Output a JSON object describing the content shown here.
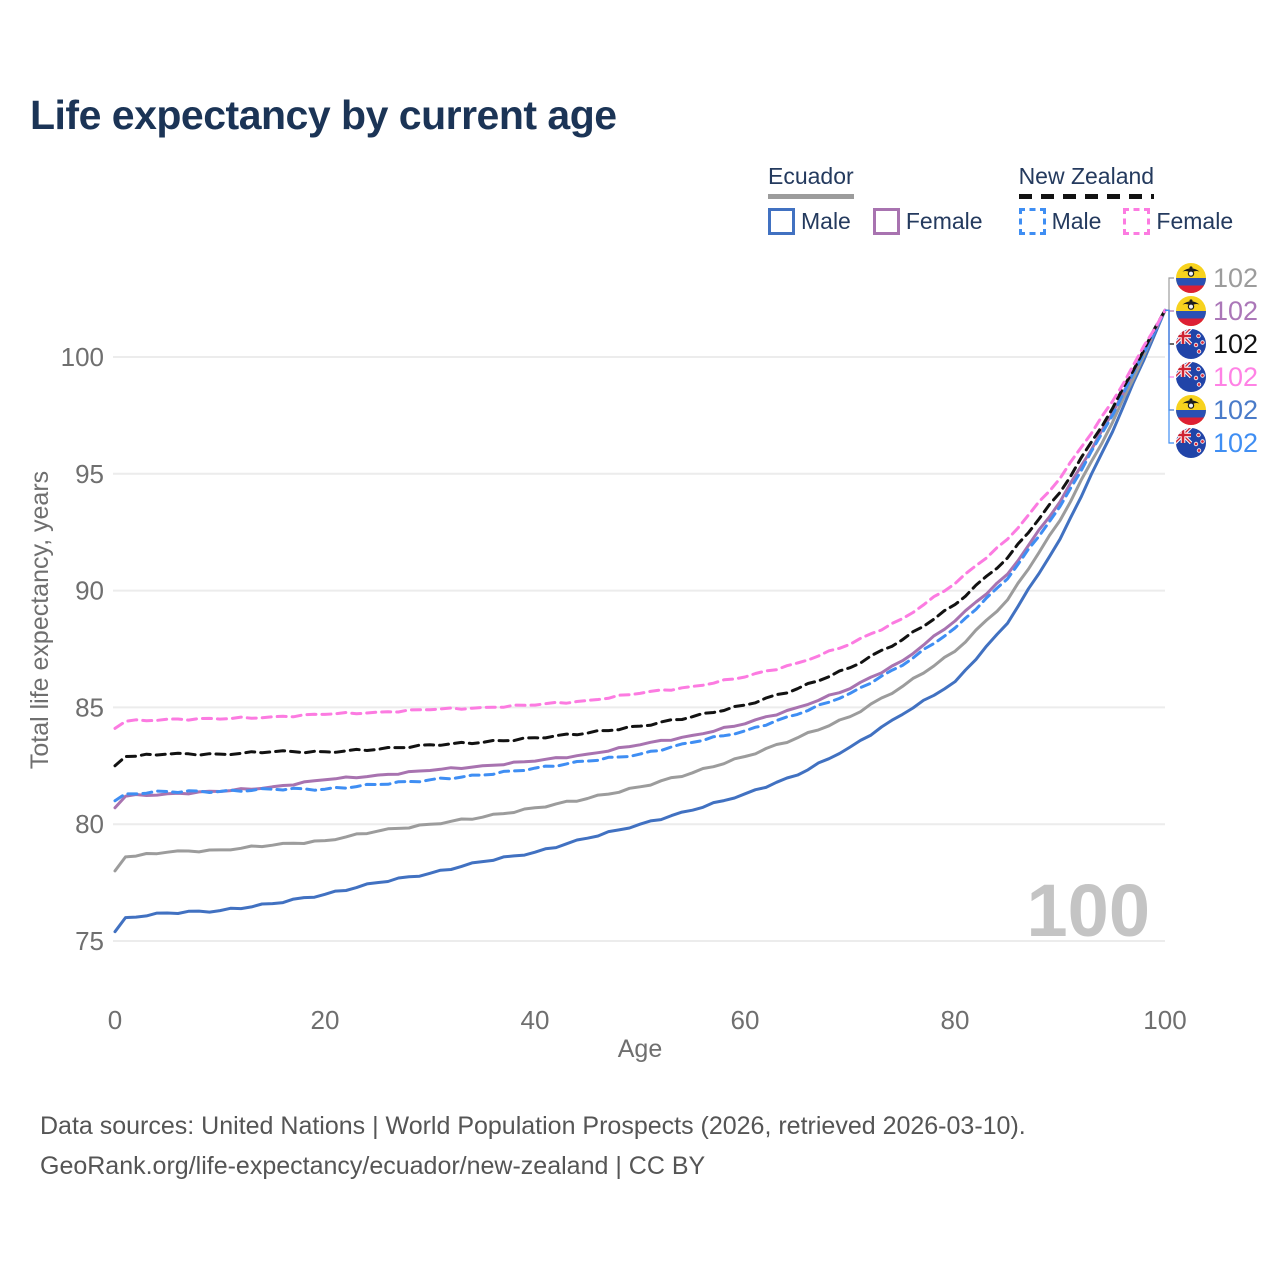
{
  "header": {
    "title": "Life expectancy by current age"
  },
  "legend": {
    "ecuador": {
      "title": "Ecuador",
      "male_label": "Male",
      "female_label": "Female"
    },
    "new_zealand": {
      "title": "New Zealand",
      "male_label": "Male",
      "female_label": "Female"
    }
  },
  "colors": {
    "title_text": "#1b3456",
    "legend_text": "#243a5e",
    "axis_text": "#6f6f6f",
    "grid": "#ececec",
    "watermark": "#c4c4c4",
    "footer_text": "#555555",
    "ecuador_male": "#4171c1",
    "ecuador_female": "#a873b0",
    "ecuador_both": "#9c9c9c",
    "nz_male": "#3f8ef3",
    "nz_female": "#fc7be1",
    "nz_both": "#121212",
    "label_ecuador_both": "#9c9c9c",
    "label_ecuador_female": "#ab77b8",
    "label_nz_both": "#111111",
    "label_nz_female": "#ff82e5",
    "label_ecuador_male": "#4a7bc9",
    "label_nz_male": "#3f8ef3"
  },
  "chart_data": {
    "type": "line",
    "title": "Life expectancy by current age",
    "xlabel": "Age",
    "ylabel": "Total life expectancy, years",
    "xlim": [
      0,
      100
    ],
    "ylim": [
      75,
      102
    ],
    "x_ticks": [
      0,
      20,
      40,
      60,
      80,
      100
    ],
    "y_ticks": [
      75,
      80,
      85,
      90,
      95,
      100
    ],
    "grid": true,
    "legend_position": "top-right",
    "watermark": "100",
    "ages": [
      0,
      1,
      5,
      10,
      15,
      20,
      25,
      30,
      35,
      40,
      45,
      50,
      55,
      60,
      65,
      70,
      75,
      80,
      85,
      90,
      95,
      100
    ],
    "series": [
      {
        "key": "ecuador_male",
        "name": "Ecuador Male",
        "country": "Ecuador",
        "sex": "Male",
        "line_style": "solid",
        "color_key": "ecuador_male",
        "values": [
          75.4,
          76.0,
          76.2,
          76.3,
          76.6,
          77.0,
          77.5,
          77.9,
          78.4,
          78.8,
          79.4,
          80.0,
          80.6,
          81.3,
          82.1,
          83.3,
          84.7,
          86.1,
          88.6,
          92.2,
          96.8,
          102
        ]
      },
      {
        "key": "ecuador_both",
        "name": "Ecuador (both sexes)",
        "country": "Ecuador",
        "sex": "Both",
        "line_style": "solid",
        "color_key": "ecuador_both",
        "values": [
          78.0,
          78.6,
          78.8,
          78.9,
          79.1,
          79.3,
          79.7,
          80.0,
          80.3,
          80.7,
          81.1,
          81.6,
          82.2,
          82.9,
          83.7,
          84.6,
          85.9,
          87.4,
          89.6,
          93.0,
          97.2,
          102
        ]
      },
      {
        "key": "ecuador_female",
        "name": "Ecuador Female",
        "country": "Ecuador",
        "sex": "Female",
        "line_style": "solid",
        "color_key": "ecuador_female",
        "values": [
          80.7,
          81.2,
          81.3,
          81.4,
          81.6,
          81.9,
          82.1,
          82.3,
          82.5,
          82.7,
          83.0,
          83.4,
          83.8,
          84.3,
          85.0,
          85.8,
          87.0,
          88.7,
          90.7,
          93.8,
          97.6,
          102
        ]
      },
      {
        "key": "nz_male",
        "name": "New Zealand Male",
        "country": "New Zealand",
        "sex": "Male",
        "line_style": "dashed",
        "color_key": "nz_male",
        "values": [
          81.0,
          81.3,
          81.4,
          81.4,
          81.5,
          81.5,
          81.7,
          81.9,
          82.1,
          82.4,
          82.7,
          83.0,
          83.5,
          84.0,
          84.7,
          85.6,
          86.8,
          88.4,
          90.5,
          93.6,
          97.5,
          102
        ]
      },
      {
        "key": "nz_both",
        "name": "New Zealand (both sexes)",
        "country": "New Zealand",
        "sex": "Both",
        "line_style": "dashed",
        "color_key": "nz_both",
        "values": [
          82.5,
          82.9,
          83.0,
          83.0,
          83.1,
          83.1,
          83.2,
          83.4,
          83.5,
          83.7,
          83.9,
          84.2,
          84.6,
          85.1,
          85.8,
          86.7,
          87.9,
          89.4,
          91.4,
          94.2,
          97.8,
          102
        ]
      },
      {
        "key": "nz_female",
        "name": "New Zealand Female",
        "country": "New Zealand",
        "sex": "Female",
        "line_style": "dashed",
        "color_key": "nz_female",
        "values": [
          84.1,
          84.4,
          84.5,
          84.5,
          84.6,
          84.7,
          84.8,
          84.9,
          85.0,
          85.1,
          85.3,
          85.6,
          85.9,
          86.3,
          86.9,
          87.7,
          88.8,
          90.3,
          92.2,
          94.8,
          98.1,
          102
        ]
      }
    ],
    "end_labels": [
      {
        "series": "ecuador_both",
        "flag": "ecuador",
        "value": "102",
        "color_key": "label_ecuador_both"
      },
      {
        "series": "ecuador_female",
        "flag": "ecuador",
        "value": "102",
        "color_key": "label_ecuador_female"
      },
      {
        "series": "nz_both",
        "flag": "new-zealand",
        "value": "102",
        "color_key": "label_nz_both"
      },
      {
        "series": "nz_female",
        "flag": "new-zealand",
        "value": "102",
        "color_key": "label_nz_female"
      },
      {
        "series": "ecuador_male",
        "flag": "ecuador",
        "value": "102",
        "color_key": "label_ecuador_male"
      },
      {
        "series": "nz_male",
        "flag": "new-zealand",
        "value": "102",
        "color_key": "label_nz_male"
      }
    ]
  },
  "footer": {
    "line1": "Data sources: United Nations | World Population Prospects (2026, retrieved 2026-03-10).",
    "line2": "GeoRank.org/life-expectancy/ecuador/new-zealand | CC BY"
  }
}
